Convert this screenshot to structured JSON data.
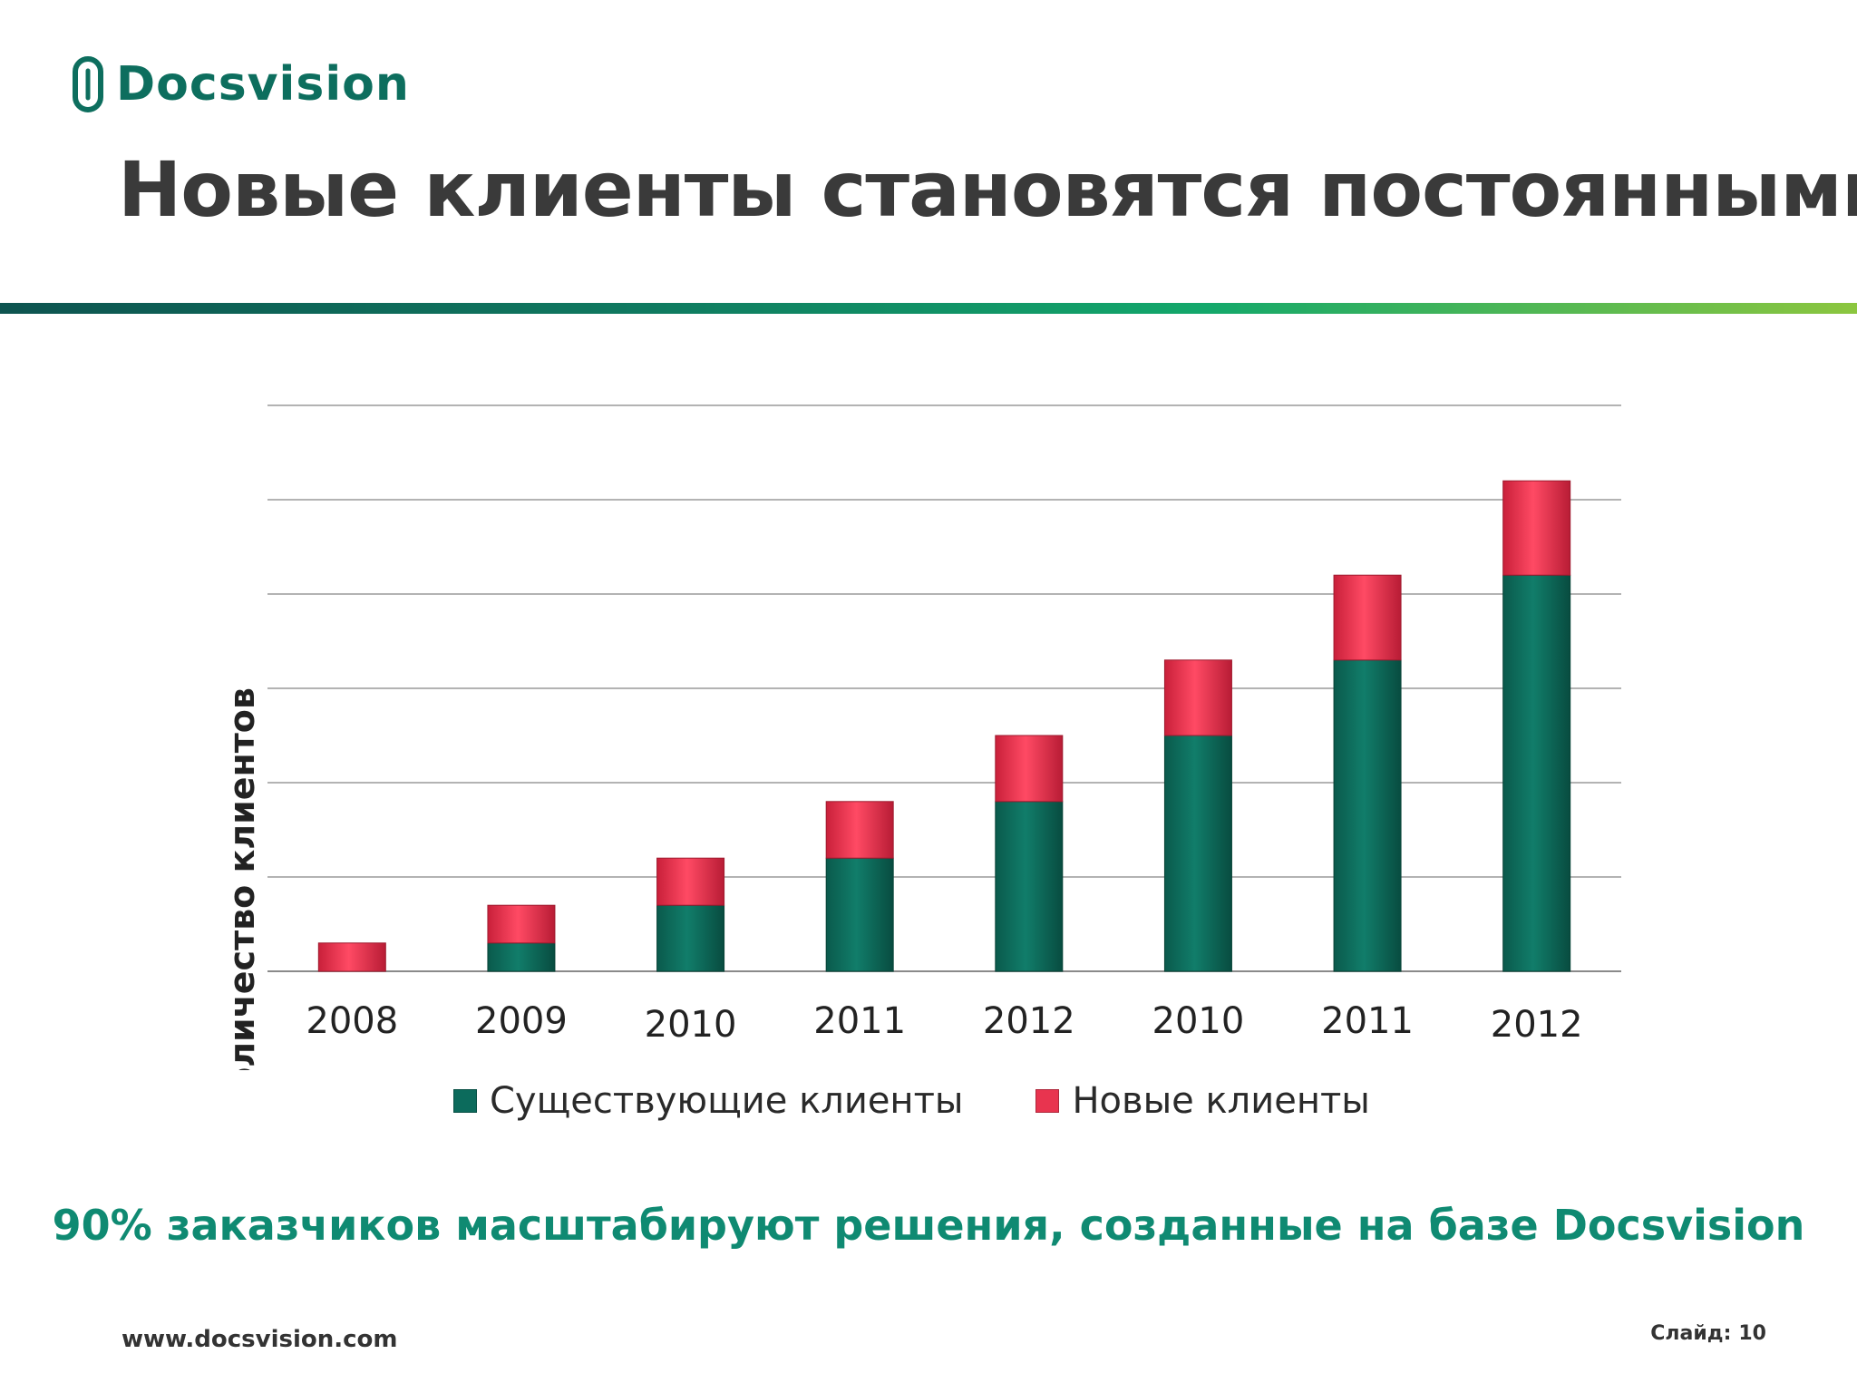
{
  "header": {
    "logo_text": "Docsvision",
    "title": "Новые клиенты становятся постоянными"
  },
  "chart_data": {
    "type": "bar",
    "stacked": true,
    "categories": [
      "2008",
      "2009",
      "2010",
      "2011",
      "2012",
      "2010",
      "2011",
      "2012"
    ],
    "series": [
      {
        "name": "Существующие клиенты",
        "color": "#0c6b5c",
        "values": [
          0,
          3,
          7,
          12,
          18,
          25,
          33,
          42
        ]
      },
      {
        "name": "Новые клиенты",
        "color": "#e8344f",
        "values": [
          3,
          4,
          5,
          6,
          7,
          8,
          9,
          10
        ]
      }
    ],
    "title": "",
    "xlabel": "",
    "ylabel": "Количество клиентов",
    "ylim": [
      0,
      60
    ],
    "ytick_step": 10,
    "yticks_labeled": false,
    "grid": true,
    "legend_position": "bottom"
  },
  "tagline": "90% заказчиков масштабируют решения, созданные на базе Docsvision",
  "footer": {
    "url": "www.docsvision.com",
    "slide_label": "Слайд:",
    "slide_number": "10"
  }
}
